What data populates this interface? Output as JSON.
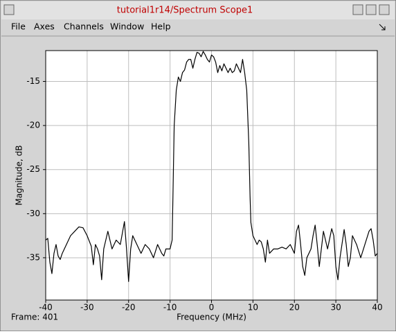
{
  "window_title": "tutorial1r14/Spectrum Scope1",
  "menu": [
    "File",
    "Axes",
    "Channels",
    "Window",
    "Help"
  ],
  "status": "Frame: 401",
  "chart_data": {
    "type": "line",
    "xlabel": "Frequency (MHz)",
    "ylabel": "Magnitude, dB",
    "xlim": [
      -40,
      40
    ],
    "ylim": [
      -39.8,
      -11.5
    ],
    "xticks": [
      -40,
      -30,
      -20,
      -10,
      0,
      10,
      20,
      30,
      40
    ],
    "yticks": [
      -35,
      -30,
      -25,
      -20,
      -15
    ],
    "grid": true,
    "color": "#000000",
    "x": [
      -40,
      -39.5,
      -39,
      -38.5,
      -38,
      -37.5,
      -37,
      -36.5,
      -36,
      -35,
      -34,
      -33,
      -32,
      -31,
      -30,
      -29,
      -28.5,
      -28,
      -27.5,
      -27,
      -26.5,
      -26,
      -25,
      -24.5,
      -24,
      -23,
      -22,
      -21,
      -20.5,
      -20,
      -19.5,
      -19,
      -18,
      -17,
      -16,
      -15,
      -14,
      -13,
      -12,
      -11.5,
      -11,
      -10,
      -9.5,
      -9.3,
      -9,
      -8.5,
      -8,
      -7.5,
      -7,
      -6.5,
      -6,
      -5.5,
      -5,
      -4.5,
      -4,
      -3.5,
      -3,
      -2.5,
      -2,
      -1.5,
      -1,
      -0.5,
      0,
      0.5,
      1,
      1.5,
      2,
      2.5,
      3,
      3.5,
      4,
      4.5,
      5,
      5.5,
      6,
      6.5,
      7,
      7.5,
      8,
      8.5,
      9,
      9.3,
      9.5,
      10,
      10.5,
      11,
      11.5,
      12,
      12.5,
      13,
      13.5,
      14,
      15,
      16,
      17,
      18,
      19,
      20,
      20.5,
      21,
      21.5,
      22,
      22.5,
      23,
      24,
      24.5,
      25,
      25.5,
      26,
      26.5,
      27,
      28,
      29,
      29.5,
      30,
      30.5,
      31,
      32,
      32.5,
      33,
      33.5,
      34,
      35,
      36,
      37,
      38,
      38.5,
      39,
      39.5,
      40
    ],
    "values": [
      -33,
      -32.8,
      -35.5,
      -36.8,
      -34.5,
      -33.5,
      -34.8,
      -35.2,
      -34.5,
      -33.5,
      -32.5,
      -32,
      -31.5,
      -31.6,
      -32.5,
      -33.7,
      -35.8,
      -33.5,
      -34,
      -34.8,
      -37.5,
      -34,
      -32,
      -33,
      -34,
      -33,
      -33.5,
      -30.9,
      -34,
      -37.7,
      -34,
      -32.5,
      -33.5,
      -34.5,
      -33.5,
      -34,
      -35,
      -33.5,
      -34.5,
      -34.8,
      -34,
      -34,
      -33,
      -28,
      -20,
      -16,
      -14.5,
      -15,
      -14,
      -13.7,
      -12.8,
      -12.5,
      -12.5,
      -13.5,
      -12.5,
      -11.7,
      -11.8,
      -12.2,
      -11.6,
      -12,
      -12.5,
      -12.8,
      -12,
      -12.2,
      -12.8,
      -14,
      -13.2,
      -13.8,
      -13,
      -13.5,
      -14,
      -13.5,
      -14,
      -13.8,
      -13,
      -13.5,
      -14,
      -12.5,
      -14,
      -16,
      -22,
      -28,
      -31,
      -32.5,
      -33,
      -33.5,
      -33,
      -33.2,
      -34,
      -35.5,
      -33,
      -34.5,
      -34,
      -34,
      -33.8,
      -34,
      -33.5,
      -34.5,
      -32,
      -31.3,
      -33.5,
      -36,
      -37,
      -35,
      -34,
      -32.5,
      -31.3,
      -33.5,
      -36,
      -34,
      -32,
      -34,
      -31.7,
      -32.5,
      -36,
      -37.5,
      -35,
      -31.8,
      -33.5,
      -36,
      -35,
      -32.5,
      -33.5,
      -35,
      -33.5,
      -32,
      -31.7,
      -33,
      -34.8,
      -34.5
    ]
  }
}
